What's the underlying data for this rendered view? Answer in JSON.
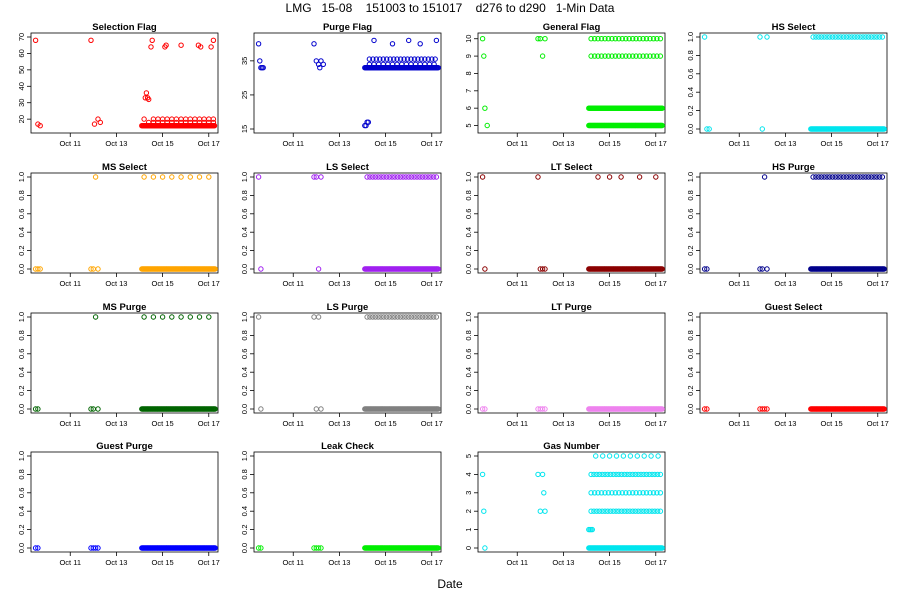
{
  "title": "LMG   15-08    151003 to 151017    d276 to d290   1-Min Data",
  "xlabel": "Date",
  "chart_data": {
    "type": "scatter",
    "x_ticks": [
      "Oct 11",
      "Oct 13",
      "Oct 15",
      "Oct 17"
    ],
    "x_tick_days": [
      11,
      13,
      15,
      17
    ],
    "xlim": [
      9.3,
      17.4
    ],
    "marker": "open-circle",
    "panels": [
      {
        "title": "Selection Flag",
        "color": "#ff0000",
        "ylim": [
          14,
          70
        ],
        "yticks": [
          20,
          30,
          40,
          50,
          60,
          70
        ],
        "series": [
          {
            "days": [
              9.5,
              9.6,
              9.7
            ],
            "values": [
              68,
              17,
              16
            ]
          },
          {
            "days": [
              11.9,
              12.05,
              12.2,
              12.3
            ],
            "values": [
              68,
              17,
              20,
              18
            ]
          },
          {
            "days": [
              14.1,
              17.25
            ],
            "values": [
              16,
              16
            ],
            "dense": true
          },
          {
            "days": [
              14.2,
              14.25,
              14.3,
              14.35,
              14.4
            ],
            "values": [
              20,
              33,
              36,
              33,
              32
            ]
          },
          {
            "days": [
              14.5,
              14.55,
              15.1,
              15.15,
              15.8,
              16.55,
              16.65,
              17.1,
              17.2
            ],
            "values": [
              64,
              68,
              64,
              65,
              65,
              65,
              64,
              64,
              68
            ]
          },
          {
            "days": [
              14.4,
              17.2
            ],
            "values": [
              18,
              18
            ],
            "step": 0.2
          },
          {
            "days": [
              14.6,
              17.2
            ],
            "values": [
              20,
              20
            ],
            "step": 0.2
          }
        ]
      },
      {
        "title": "Purge Flag",
        "color": "#0000cd",
        "ylim": [
          15,
          42
        ],
        "yticks": [
          15,
          25,
          35
        ],
        "series": [
          {
            "days": [
              9.5,
              9.55,
              9.6,
              9.65,
              9.7
            ],
            "values": [
              40,
              35,
              33,
              33,
              33
            ]
          },
          {
            "days": [
              11.9,
              12.0,
              12.1,
              12.15,
              12.2,
              12.3
            ],
            "values": [
              40,
              35,
              34,
              33,
              35,
              34
            ]
          },
          {
            "days": [
              14.1,
              17.3
            ],
            "values": [
              33,
              33
            ],
            "dense": true
          },
          {
            "days": [
              14.1,
              14.15,
              14.2,
              14.25
            ],
            "values": [
              16,
              16,
              17,
              17
            ]
          },
          {
            "days": [
              14.3,
              17.2
            ],
            "values": [
              34,
              34
            ],
            "step": 0.2
          },
          {
            "days": [
              14.3,
              17.2
            ],
            "values": [
              35.5,
              35.5
            ],
            "step": 0.15
          },
          {
            "days": [
              14.5,
              15.3,
              16.0,
              16.5,
              17.2
            ],
            "values": [
              41,
              40,
              41,
              40,
              41
            ]
          }
        ]
      },
      {
        "title": "General Flag",
        "color": "#00ee00",
        "ylim": [
          4.8,
          10.1
        ],
        "yticks": [
          5,
          6,
          7,
          8,
          9,
          10
        ],
        "series": [
          {
            "days": [
              9.5,
              9.55,
              9.6,
              9.7
            ],
            "values": [
              10,
              9,
              6,
              5
            ]
          },
          {
            "days": [
              11.9,
              12.0,
              12.1,
              12.2
            ],
            "values": [
              10,
              10,
              9,
              10
            ]
          },
          {
            "days": [
              14.1,
              17.3
            ],
            "values": [
              6,
              6
            ],
            "dense": true
          },
          {
            "days": [
              14.1,
              17.3
            ],
            "values": [
              5,
              5
            ],
            "dense": true
          },
          {
            "days": [
              14.2,
              17.2
            ],
            "values": [
              9,
              9
            ],
            "step": 0.15
          },
          {
            "days": [
              14.2,
              17.2
            ],
            "values": [
              10,
              10
            ],
            "step": 0.15
          }
        ]
      },
      {
        "title": "HS Select",
        "color": "#00e5ee",
        "ylim": [
          0,
          1
        ],
        "yticks": [
          0.0,
          0.2,
          0.4,
          0.6,
          0.8,
          1.0
        ],
        "series": [
          {
            "days": [
              9.5,
              9.6,
              9.7
            ],
            "values": [
              1,
              0,
              0
            ]
          },
          {
            "days": [
              11.9,
              12.0,
              12.2
            ],
            "values": [
              1,
              0,
              1
            ]
          },
          {
            "days": [
              14.1,
              17.3
            ],
            "values": [
              0,
              0
            ],
            "dense": true
          },
          {
            "days": [
              14.2,
              17.2
            ],
            "values": [
              1,
              1
            ],
            "step": 0.12
          }
        ]
      },
      {
        "title": "MS Select",
        "color": "#ffa500",
        "ylim": [
          0,
          1
        ],
        "yticks": [
          0.0,
          0.2,
          0.4,
          0.6,
          0.8,
          1.0
        ],
        "series": [
          {
            "days": [
              9.5,
              9.6,
              9.7
            ],
            "values": [
              0,
              0,
              0
            ]
          },
          {
            "days": [
              11.9,
              12.0,
              12.1,
              12.2
            ],
            "values": [
              0,
              0,
              1,
              0
            ]
          },
          {
            "days": [
              14.1,
              17.3
            ],
            "values": [
              0,
              0
            ],
            "dense": true
          },
          {
            "days": [
              14.2,
              17.2
            ],
            "values": [
              1,
              1
            ],
            "step": 0.4
          }
        ]
      },
      {
        "title": "LS Select",
        "color": "#a020f0",
        "ylim": [
          0,
          1
        ],
        "yticks": [
          0.0,
          0.2,
          0.4,
          0.6,
          0.8,
          1.0
        ],
        "series": [
          {
            "days": [
              9.5,
              9.6
            ],
            "values": [
              1,
              0
            ]
          },
          {
            "days": [
              11.9,
              12.0,
              12.1,
              12.2
            ],
            "values": [
              1,
              1,
              0,
              1
            ]
          },
          {
            "days": [
              14.1,
              17.3
            ],
            "values": [
              0,
              0
            ],
            "dense": true
          },
          {
            "days": [
              14.2,
              17.2
            ],
            "values": [
              1,
              1
            ],
            "step": 0.12
          }
        ]
      },
      {
        "title": "LT Select",
        "color": "#8b0000",
        "ylim": [
          0,
          1
        ],
        "yticks": [
          0.0,
          0.2,
          0.4,
          0.6,
          0.8,
          1.0
        ],
        "series": [
          {
            "days": [
              9.5,
              9.6
            ],
            "values": [
              1,
              0
            ]
          },
          {
            "days": [
              11.9,
              12.0,
              12.1,
              12.2
            ],
            "values": [
              1,
              0,
              0,
              0
            ]
          },
          {
            "days": [
              14.1,
              17.3
            ],
            "values": [
              0,
              0
            ],
            "dense": true
          },
          {
            "days": [
              14.5,
              15.0,
              15.5,
              16.3,
              17.0
            ],
            "values": [
              1,
              1,
              1,
              1,
              1
            ]
          }
        ]
      },
      {
        "title": "HS Purge",
        "color": "#00008b",
        "ylim": [
          0,
          1
        ],
        "yticks": [
          0.0,
          0.2,
          0.4,
          0.6,
          0.8,
          1.0
        ],
        "series": [
          {
            "days": [
              9.5,
              9.6
            ],
            "values": [
              0,
              0
            ]
          },
          {
            "days": [
              11.9,
              12.0,
              12.1,
              12.2
            ],
            "values": [
              0,
              0,
              1,
              0
            ]
          },
          {
            "days": [
              14.1,
              17.3
            ],
            "values": [
              0,
              0
            ],
            "dense": true
          },
          {
            "days": [
              14.2,
              17.2
            ],
            "values": [
              1,
              1
            ],
            "step": 0.12
          }
        ]
      },
      {
        "title": "MS Purge",
        "color": "#006400",
        "ylim": [
          0,
          1
        ],
        "yticks": [
          0.0,
          0.2,
          0.4,
          0.6,
          0.8,
          1.0
        ],
        "series": [
          {
            "days": [
              9.5,
              9.6
            ],
            "values": [
              0,
              0
            ]
          },
          {
            "days": [
              11.9,
              12.0,
              12.1,
              12.2
            ],
            "values": [
              0,
              0,
              1,
              0
            ]
          },
          {
            "days": [
              14.1,
              17.3
            ],
            "values": [
              0,
              0
            ],
            "dense": true
          },
          {
            "days": [
              14.2,
              17.2
            ],
            "values": [
              1,
              1
            ],
            "step": 0.4
          }
        ]
      },
      {
        "title": "LS Purge",
        "color": "#808080",
        "ylim": [
          0,
          1
        ],
        "yticks": [
          0.0,
          0.2,
          0.4,
          0.6,
          0.8,
          1.0
        ],
        "series": [
          {
            "days": [
              9.5,
              9.6
            ],
            "values": [
              1,
              0
            ]
          },
          {
            "days": [
              11.9,
              12.0,
              12.1,
              12.2
            ],
            "values": [
              1,
              0,
              1,
              0
            ]
          },
          {
            "days": [
              14.1,
              17.3
            ],
            "values": [
              0,
              0
            ],
            "dense": true
          },
          {
            "days": [
              14.2,
              17.2
            ],
            "values": [
              1,
              1
            ],
            "step": 0.12
          }
        ]
      },
      {
        "title": "LT Purge",
        "color": "#ee82ee",
        "ylim": [
          0,
          1
        ],
        "yticks": [
          0.0,
          0.2,
          0.4,
          0.6,
          0.8,
          1.0
        ],
        "series": [
          {
            "days": [
              9.5,
              9.6
            ],
            "values": [
              0,
              0
            ]
          },
          {
            "days": [
              11.9,
              12.0,
              12.1,
              12.2
            ],
            "values": [
              0,
              0,
              0,
              0
            ]
          },
          {
            "days": [
              14.1,
              17.3
            ],
            "values": [
              0,
              0
            ],
            "dense": true
          }
        ]
      },
      {
        "title": "Guest Select",
        "color": "#ff0000",
        "ylim": [
          0,
          1
        ],
        "yticks": [
          0.0,
          0.2,
          0.4,
          0.6,
          0.8,
          1.0
        ],
        "series": [
          {
            "days": [
              9.5,
              9.6
            ],
            "values": [
              0,
              0
            ]
          },
          {
            "days": [
              11.9,
              12.0,
              12.1,
              12.2
            ],
            "values": [
              0,
              0,
              0,
              0
            ]
          },
          {
            "days": [
              14.1,
              17.3
            ],
            "values": [
              0,
              0
            ],
            "dense": true
          }
        ]
      },
      {
        "title": "Guest Purge",
        "color": "#0000ff",
        "ylim": [
          0,
          1
        ],
        "yticks": [
          0.0,
          0.2,
          0.4,
          0.6,
          0.8,
          1.0
        ],
        "series": [
          {
            "days": [
              9.5,
              9.6
            ],
            "values": [
              0,
              0
            ]
          },
          {
            "days": [
              11.9,
              12.0,
              12.1,
              12.2
            ],
            "values": [
              0,
              0,
              0,
              0
            ]
          },
          {
            "days": [
              14.1,
              17.3
            ],
            "values": [
              0,
              0
            ],
            "dense": true
          }
        ]
      },
      {
        "title": "Leak Check",
        "color": "#00ee00",
        "ylim": [
          0,
          1
        ],
        "yticks": [
          0.0,
          0.2,
          0.4,
          0.6,
          0.8,
          1.0
        ],
        "series": [
          {
            "days": [
              9.5,
              9.6
            ],
            "values": [
              0,
              0
            ]
          },
          {
            "days": [
              11.9,
              12.0,
              12.1,
              12.2
            ],
            "values": [
              0,
              0,
              0,
              0
            ]
          },
          {
            "days": [
              14.1,
              17.3
            ],
            "values": [
              0,
              0
            ],
            "dense": true
          }
        ]
      },
      {
        "title": "Gas Number",
        "color": "#00e5ee",
        "ylim": [
          0,
          5
        ],
        "yticks": [
          0,
          1,
          2,
          3,
          4,
          5
        ],
        "series": [
          {
            "days": [
              9.5,
              9.55,
              9.6
            ],
            "values": [
              4,
              2,
              0
            ]
          },
          {
            "days": [
              11.9,
              12.0,
              12.1,
              12.15,
              12.2
            ],
            "values": [
              4,
              2,
              4,
              3,
              2
            ]
          },
          {
            "days": [
              14.1,
              17.3
            ],
            "values": [
              0,
              0
            ],
            "dense": true
          },
          {
            "days": [
              14.1,
              14.15,
              14.2,
              14.25
            ],
            "values": [
              1,
              1,
              1,
              1
            ]
          },
          {
            "days": [
              14.2,
              17.2
            ],
            "values": [
              4,
              4
            ],
            "step": 0.12
          },
          {
            "days": [
              14.2,
              17.2
            ],
            "values": [
              3,
              3
            ],
            "step": 0.15
          },
          {
            "days": [
              14.2,
              17.2
            ],
            "values": [
              2,
              2
            ],
            "step": 0.12
          },
          {
            "days": [
              14.4,
              17.2
            ],
            "values": [
              5,
              5
            ],
            "step": 0.3
          }
        ]
      }
    ]
  }
}
